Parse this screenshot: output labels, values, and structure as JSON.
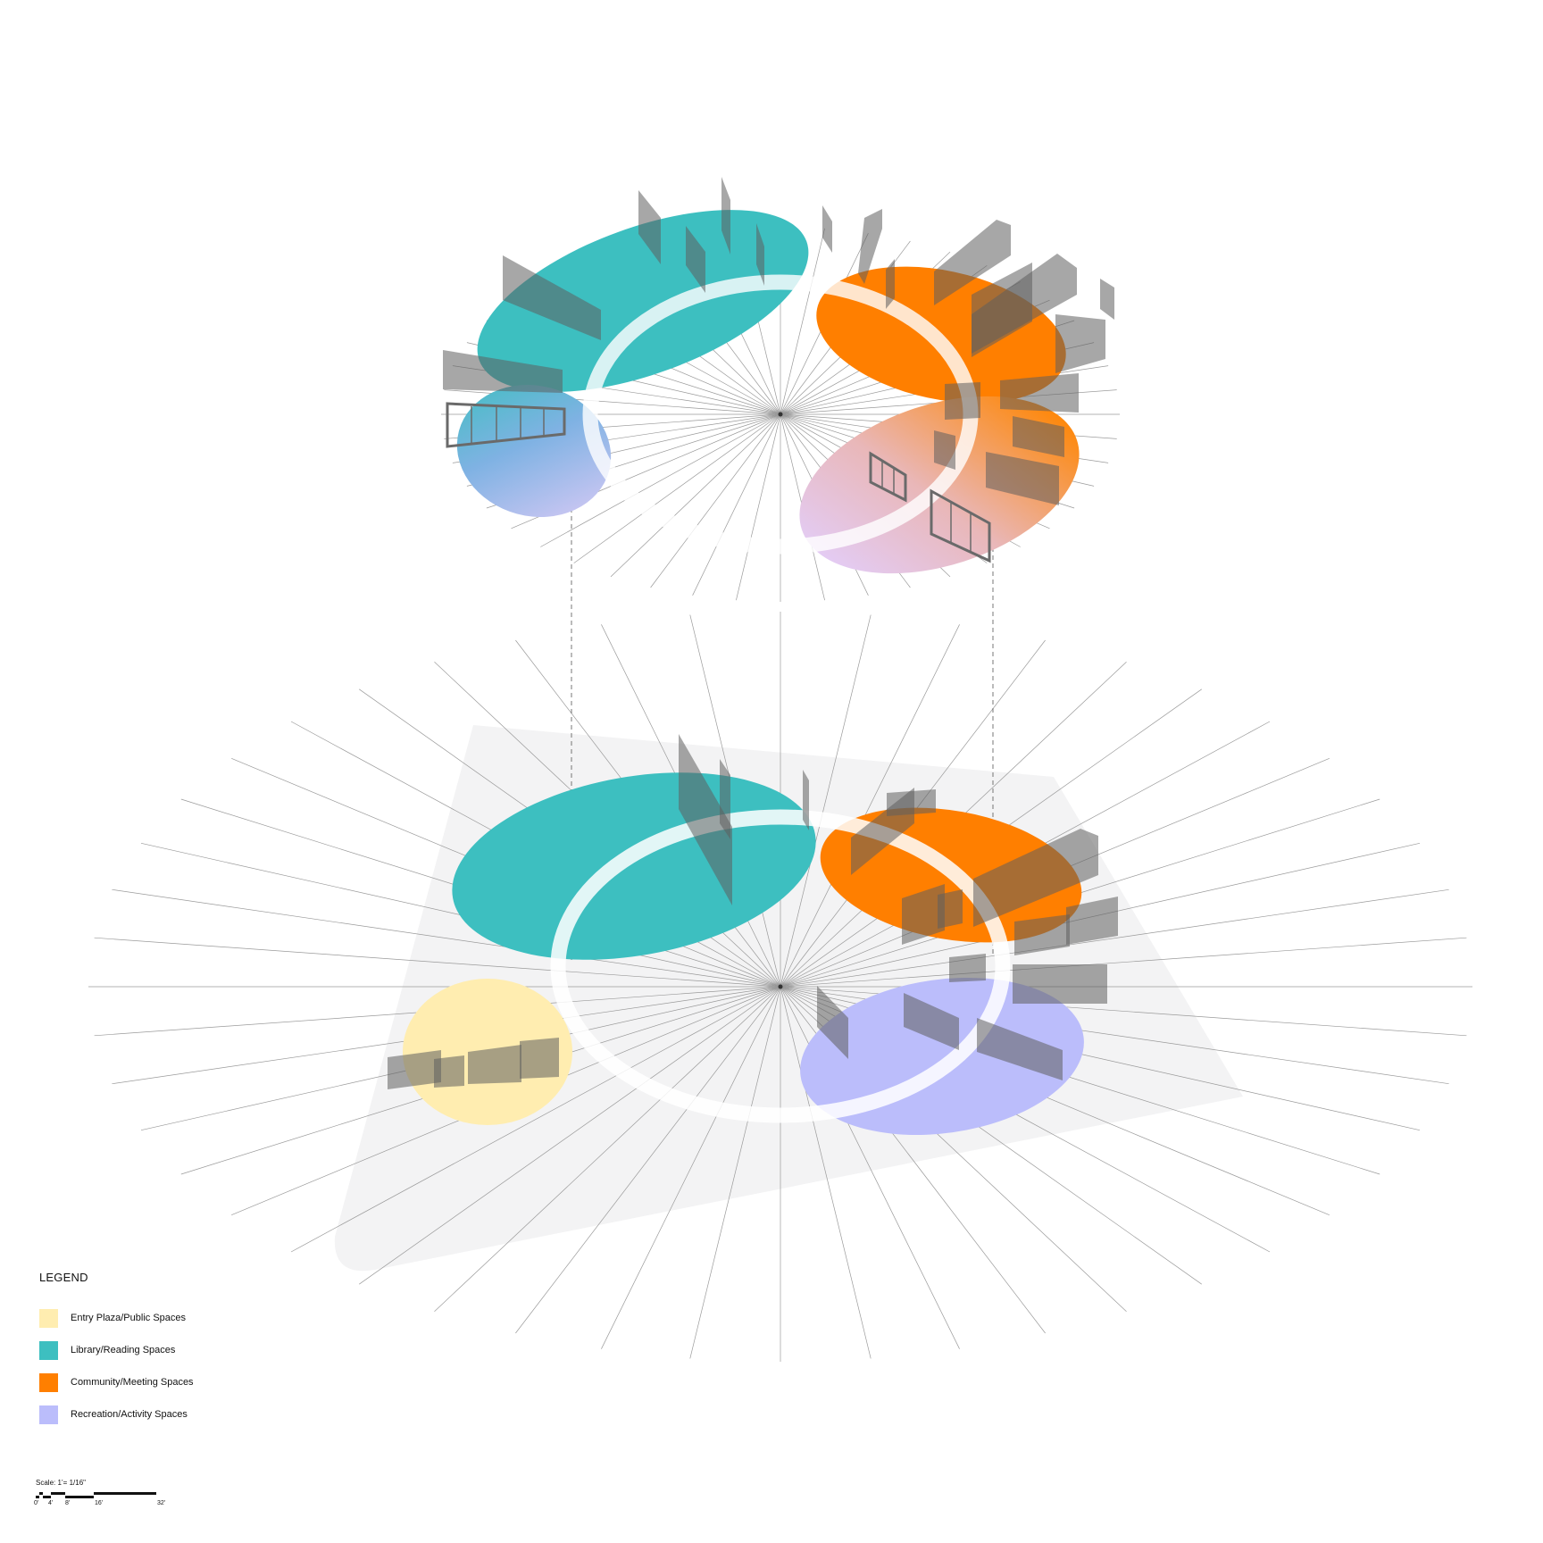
{
  "legend": {
    "title": "LEGEND",
    "items": [
      {
        "label": "Entry Plaza/Public Spaces",
        "color": "#FFEDB0"
      },
      {
        "label": "Library/Reading Spaces",
        "color": "#3DBFC0"
      },
      {
        "label": "Community/Meeting Spaces",
        "color": "#FF7F00"
      },
      {
        "label": "Recreation/Activity Spaces",
        "color": "#BBBDFB"
      }
    ]
  },
  "scale": {
    "title": "Scale: 1’= 1/16\"",
    "ticks": [
      "0'",
      "4'",
      "8'",
      "16'",
      "32'"
    ]
  },
  "colors": {
    "base_plane": "#F3F3F4",
    "wall_shadow": "#5F5F5F",
    "ring": "#FFFFFF",
    "ray": "#9A9A9A"
  }
}
